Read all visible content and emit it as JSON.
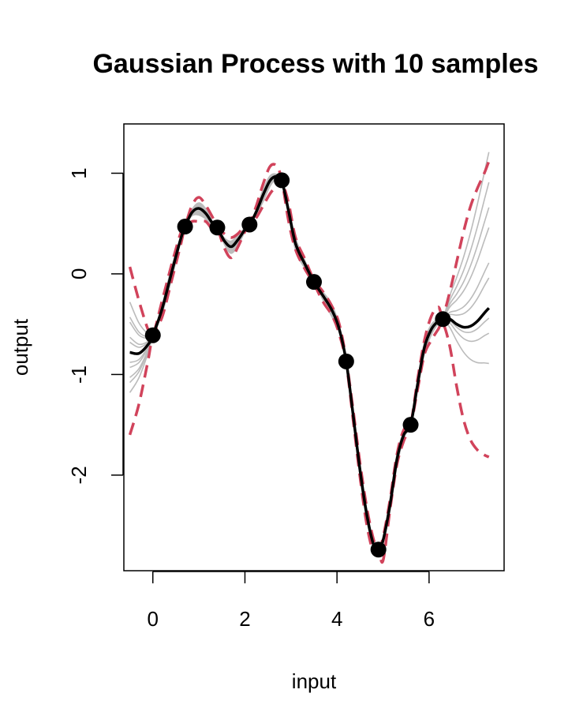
{
  "chart_data": {
    "type": "line",
    "title": "Gaussian Process with 10 samples",
    "xlabel": "input",
    "ylabel": "output",
    "xlim": [
      -0.63,
      7.63
    ],
    "ylim": [
      -2.95,
      1.49
    ],
    "x_ticks": [
      0,
      2,
      4,
      6
    ],
    "y_ticks": [
      -2,
      -1,
      0,
      1
    ],
    "grid": false,
    "legend": "none",
    "colors": {
      "observations": "#000000",
      "mean": "#000000",
      "bounds": "#D1435B",
      "samples": "#BBBBBB"
    },
    "observations": {
      "x": [
        0.0,
        0.7,
        1.4,
        2.1,
        2.8,
        3.5,
        4.2,
        4.9,
        5.6,
        6.3
      ],
      "y": [
        -0.61,
        0.47,
        0.46,
        0.49,
        0.93,
        -0.08,
        -0.87,
        -2.74,
        -1.5,
        -0.45
      ]
    },
    "mean": {
      "x": [
        -0.5,
        -0.3,
        -0.1,
        0.0,
        0.2,
        0.4,
        0.6,
        0.7,
        0.85,
        1.0,
        1.15,
        1.3,
        1.4,
        1.55,
        1.7,
        1.85,
        2.0,
        2.1,
        2.25,
        2.4,
        2.55,
        2.7,
        2.8,
        2.95,
        3.1,
        3.3,
        3.5,
        3.7,
        3.9,
        4.05,
        4.2,
        4.35,
        4.5,
        4.65,
        4.8,
        4.9,
        5.0,
        5.15,
        5.3,
        5.45,
        5.6,
        5.75,
        5.9,
        6.05,
        6.2,
        6.3,
        6.45,
        6.6,
        6.75,
        6.9,
        7.05,
        7.2,
        7.3
      ],
      "y": [
        -0.78,
        -0.79,
        -0.7,
        -0.61,
        -0.35,
        0.0,
        0.34,
        0.47,
        0.61,
        0.65,
        0.6,
        0.5,
        0.46,
        0.33,
        0.27,
        0.34,
        0.44,
        0.49,
        0.62,
        0.79,
        0.93,
        0.97,
        0.93,
        0.62,
        0.3,
        0.1,
        -0.08,
        -0.22,
        -0.37,
        -0.55,
        -0.87,
        -1.4,
        -1.95,
        -2.4,
        -2.7,
        -2.74,
        -2.65,
        -2.3,
        -1.85,
        -1.6,
        -1.5,
        -1.1,
        -0.73,
        -0.55,
        -0.47,
        -0.45,
        -0.45,
        -0.5,
        -0.53,
        -0.52,
        -0.47,
        -0.39,
        -0.34
      ]
    },
    "upper_bound": {
      "x": [
        -0.5,
        -0.3,
        -0.1,
        0.0,
        0.2,
        0.4,
        0.6,
        0.7,
        0.85,
        1.0,
        1.15,
        1.3,
        1.4,
        1.55,
        1.7,
        1.85,
        2.0,
        2.1,
        2.25,
        2.4,
        2.55,
        2.7,
        2.8,
        2.95,
        3.1,
        3.3,
        3.5,
        3.7,
        3.9,
        4.05,
        4.2,
        4.35,
        4.5,
        4.65,
        4.8,
        4.9,
        5.0,
        5.15,
        5.3,
        5.45,
        5.6,
        5.75,
        5.9,
        6.05,
        6.2,
        6.3,
        6.45,
        6.6,
        6.75,
        6.9,
        7.05,
        7.2,
        7.3
      ],
      "y": [
        0.07,
        -0.27,
        -0.56,
        -0.61,
        -0.27,
        0.08,
        0.4,
        0.48,
        0.68,
        0.76,
        0.68,
        0.56,
        0.47,
        0.4,
        0.36,
        0.4,
        0.48,
        0.5,
        0.68,
        0.9,
        1.07,
        1.07,
        0.94,
        0.7,
        0.36,
        0.15,
        -0.06,
        -0.18,
        -0.33,
        -0.5,
        -0.85,
        -1.35,
        -1.88,
        -2.33,
        -2.65,
        -2.74,
        -2.62,
        -2.25,
        -1.8,
        -1.55,
        -1.49,
        -1.05,
        -0.66,
        -0.42,
        -0.33,
        -0.41,
        -0.18,
        0.12,
        0.42,
        0.67,
        0.85,
        1.0,
        1.12
      ]
    },
    "lower_bound": {
      "x": [
        -0.5,
        -0.3,
        -0.1,
        0.0,
        0.2,
        0.4,
        0.6,
        0.7,
        0.85,
        1.0,
        1.15,
        1.3,
        1.4,
        1.55,
        1.7,
        1.85,
        2.0,
        2.1,
        2.25,
        2.4,
        2.55,
        2.7,
        2.8,
        2.95,
        3.1,
        3.3,
        3.5,
        3.7,
        3.9,
        4.05,
        4.2,
        4.35,
        4.5,
        4.65,
        4.8,
        4.9,
        5.0,
        5.15,
        5.3,
        5.45,
        5.6,
        5.75,
        5.9,
        6.05,
        6.2,
        6.3,
        6.45,
        6.6,
        6.75,
        6.9,
        7.05,
        7.2,
        7.3
      ],
      "y": [
        -1.6,
        -1.29,
        -0.85,
        -0.61,
        -0.43,
        -0.08,
        0.28,
        0.46,
        0.52,
        0.52,
        0.52,
        0.44,
        0.45,
        0.26,
        0.16,
        0.27,
        0.42,
        0.48,
        0.56,
        0.68,
        0.8,
        0.88,
        0.92,
        0.52,
        0.24,
        0.05,
        -0.1,
        -0.28,
        -0.42,
        -0.6,
        -0.89,
        -1.45,
        -2.02,
        -2.5,
        -2.78,
        -2.75,
        -2.85,
        -2.35,
        -1.9,
        -1.66,
        -1.51,
        -1.15,
        -0.8,
        -0.66,
        -0.55,
        -0.49,
        -0.72,
        -1.12,
        -1.45,
        -1.65,
        -1.75,
        -1.8,
        -1.82
      ]
    },
    "samples": {
      "x": [
        -0.5,
        -0.3,
        -0.1,
        0.0,
        0.2,
        0.4,
        0.6,
        0.7,
        0.85,
        1.0,
        1.15,
        1.3,
        1.4,
        1.55,
        1.7,
        1.85,
        2.0,
        2.1,
        2.25,
        2.4,
        2.55,
        2.7,
        2.8,
        2.95,
        3.1,
        3.3,
        3.5,
        3.7,
        3.9,
        4.05,
        4.2,
        4.35,
        4.5,
        4.65,
        4.8,
        4.9,
        5.0,
        5.15,
        5.3,
        5.45,
        5.6,
        5.75,
        5.9,
        6.05,
        6.2,
        6.3,
        6.45,
        6.6,
        6.75,
        6.9,
        7.05,
        7.2,
        7.3
      ],
      "offsets": [
        {
          "left": 0.5,
          "right": 0.3,
          "dip": -0.05
        },
        {
          "left": 0.3,
          "right": 1.0,
          "dip": 0.05
        },
        {
          "left": 0.15,
          "right": 1.55,
          "dip": 0.03
        },
        {
          "left": -0.1,
          "right": 0.8,
          "dip": -0.04
        },
        {
          "left": -0.25,
          "right": 1.25,
          "dip": 0.02
        },
        {
          "left": -0.4,
          "right": -0.25,
          "dip": -0.02
        },
        {
          "left": 0.35,
          "right": -0.55,
          "dip": 0.04
        },
        {
          "left": 0.1,
          "right": 0.0,
          "dip": -0.03
        },
        {
          "left": -0.3,
          "right": 0.45,
          "dip": 0.01
        },
        {
          "left": -0.15,
          "right": -0.1,
          "dip": -0.06
        }
      ]
    }
  }
}
